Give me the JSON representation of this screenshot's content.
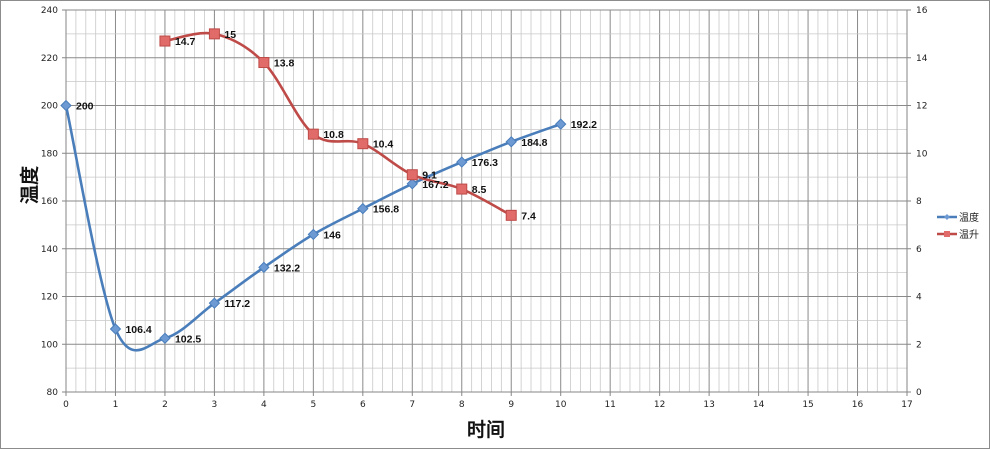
{
  "chart_data": {
    "type": "line",
    "title": "",
    "xlabel": "时间",
    "ylabel": "温度",
    "y2label": "",
    "x_ticks": [
      0,
      1,
      2,
      3,
      4,
      5,
      6,
      7,
      8,
      9,
      10,
      11,
      12,
      13,
      14,
      15,
      16,
      17
    ],
    "xlim": [
      0,
      17
    ],
    "ylim": [
      80,
      240
    ],
    "y_ticks": [
      80,
      100,
      120,
      140,
      160,
      180,
      200,
      220,
      240
    ],
    "y2lim": [
      0,
      16
    ],
    "y2_ticks": [
      0,
      2,
      4,
      6,
      8,
      10,
      12,
      14,
      16
    ],
    "grid": true,
    "smooth": true,
    "legend_position": "right",
    "series": [
      {
        "name": "温度",
        "axis": "left",
        "color": "#4a7ebb",
        "marker": "diamond",
        "x": [
          0,
          1,
          2,
          3,
          4,
          5,
          6,
          7,
          8,
          9,
          10
        ],
        "values": [
          200,
          106.4,
          102.5,
          117.2,
          132.2,
          146,
          156.8,
          167.2,
          176.3,
          184.8,
          192.2
        ],
        "labels": [
          "200",
          "106.4",
          "102.5",
          "117.2",
          "132.2",
          "146",
          "156.8",
          "167.2",
          "176.3",
          "184.8",
          "192.2"
        ]
      },
      {
        "name": "温升",
        "axis": "right",
        "color": "#be4b48",
        "marker": "square",
        "x": [
          2,
          3,
          4,
          5,
          6,
          7,
          8,
          9
        ],
        "values": [
          14.7,
          15,
          13.8,
          10.8,
          10.4,
          9.1,
          8.5,
          7.4
        ],
        "labels": [
          "14.7",
          "15",
          "13.8",
          "10.8",
          "10.4",
          "9.1",
          "8.5",
          "7.4"
        ]
      }
    ]
  },
  "legend": {
    "items": [
      {
        "label": "温度",
        "color": "#4a7ebb"
      },
      {
        "label": "温升",
        "color": "#be4b48"
      }
    ]
  }
}
